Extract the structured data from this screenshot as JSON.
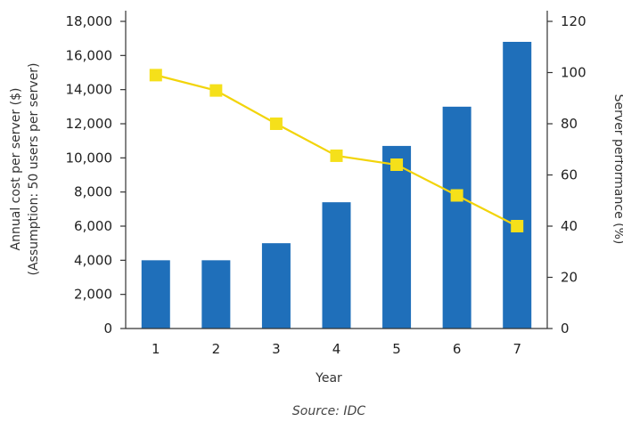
{
  "chart_data": {
    "type": "bar",
    "categories": [
      "1",
      "2",
      "3",
      "4",
      "5",
      "6",
      "7"
    ],
    "xlabel": "Year",
    "ylabel": [
      "Annual cost per server ($)",
      "(Assumption: 50 users per server)"
    ],
    "y2label": "Server performance (%)",
    "ylim": [
      0,
      18000
    ],
    "y2lim": [
      0,
      120
    ],
    "yticks": [
      "0",
      "2,000",
      "4,000",
      "6,000",
      "8,000",
      "10,000",
      "12,000",
      "14,000",
      "16,000",
      "18,000"
    ],
    "y2ticks": [
      "0",
      "20",
      "40",
      "60",
      "80",
      "100",
      "120"
    ],
    "series": [
      {
        "type": "bar",
        "axis": "left",
        "values": [
          4000,
          4000,
          5000,
          7400,
          10700,
          13000,
          16800
        ]
      },
      {
        "type": "line",
        "axis": "right",
        "values": [
          99,
          93,
          80,
          67.5,
          64,
          52,
          40
        ]
      }
    ],
    "grid": false,
    "bar_color": "#1f6fba",
    "line_color": "#f2d40a",
    "marker_color": "#f5e01a",
    "source": "Source: IDC"
  }
}
